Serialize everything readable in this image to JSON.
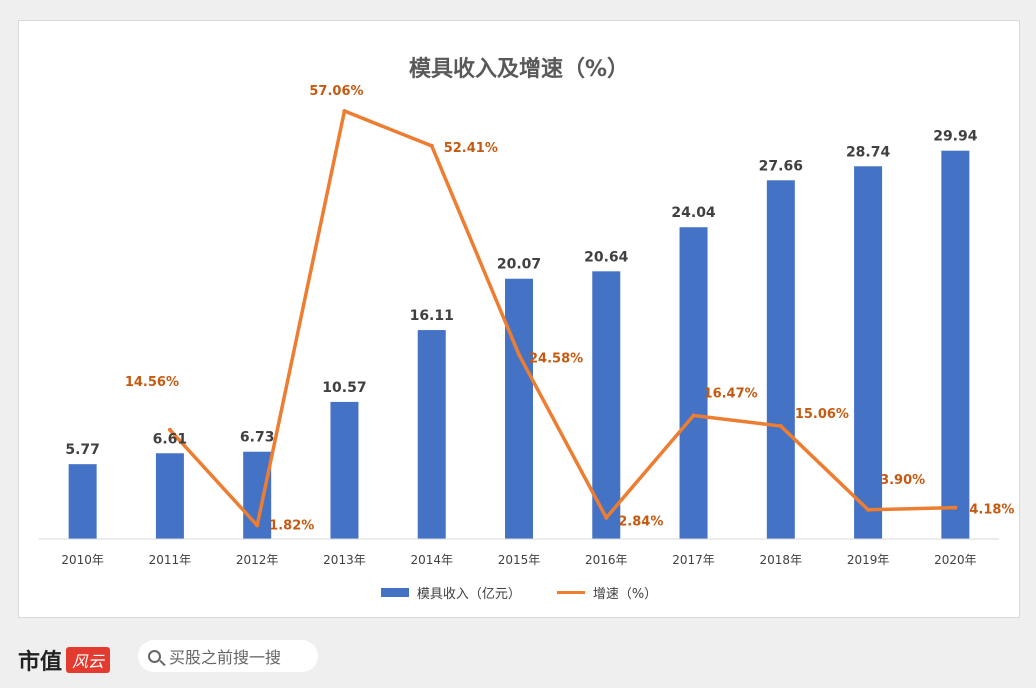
{
  "chart_data": {
    "type": "bar",
    "title": "模具收入及增速（%）",
    "categories": [
      "2010年",
      "2011年",
      "2012年",
      "2013年",
      "2014年",
      "2015年",
      "2016年",
      "2017年",
      "2018年",
      "2019年",
      "2020年"
    ],
    "series": [
      {
        "name": "模具收入（亿元）",
        "type": "bar",
        "values": [
          5.77,
          6.61,
          6.73,
          10.57,
          16.11,
          20.07,
          20.64,
          24.04,
          27.66,
          28.74,
          29.94
        ],
        "labels": [
          "5.77",
          "6.61",
          "6.73",
          "10.57",
          "16.11",
          "20.07",
          "20.64",
          "24.04",
          "27.66",
          "28.74",
          "29.94"
        ]
      },
      {
        "name": "增速（%）",
        "type": "line",
        "values": [
          null,
          14.56,
          1.82,
          57.06,
          52.41,
          24.58,
          2.84,
          16.47,
          15.06,
          3.9,
          4.18
        ],
        "labels": [
          "",
          "14.56%",
          "1.82%",
          "57.06%",
          "52.41%",
          "24.58%",
          "2.84%",
          "16.47%",
          "15.06%",
          "3.90%",
          "4.18%"
        ]
      }
    ],
    "ylim_bar": [
      0,
      32
    ],
    "ylim_line": [
      0,
      60
    ],
    "legend_position": "bottom",
    "grid": false,
    "colors": {
      "bar": "#4472c4",
      "line": "#ed7d31",
      "bar_label": "#404040",
      "line_label": "#c55a11"
    }
  },
  "watermark": "市值风云",
  "footer": {
    "brand": "市值",
    "brand_seal": "风云",
    "search_icon": "search-icon",
    "search_text": "买股之前搜一搜"
  }
}
